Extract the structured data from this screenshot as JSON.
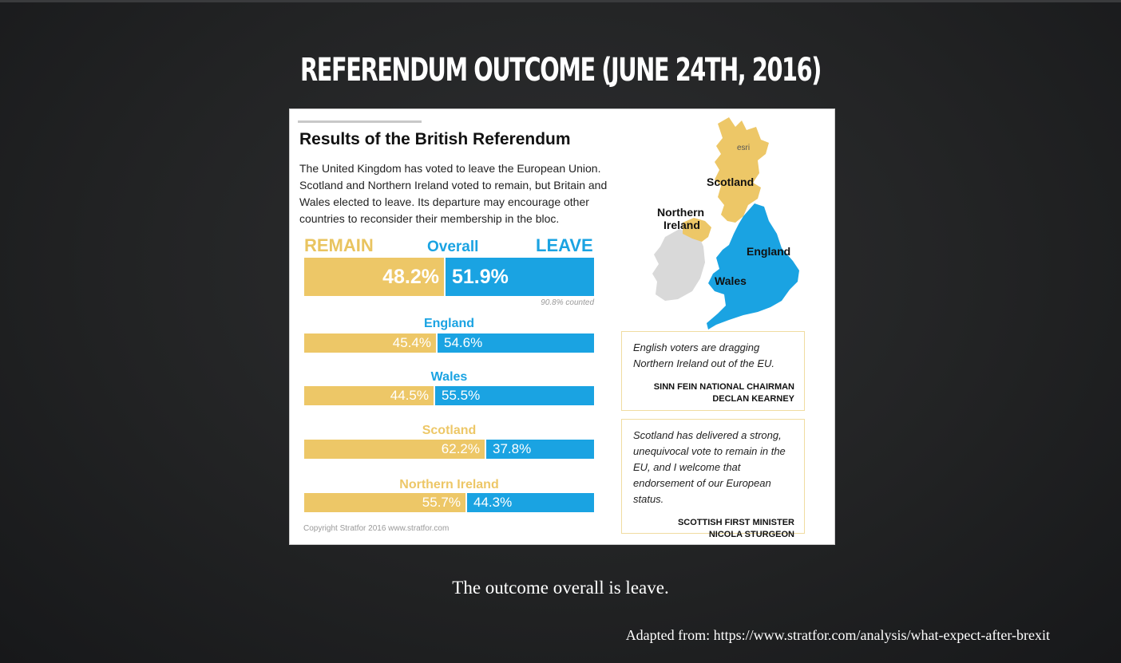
{
  "slide": {
    "title": "REFERENDUM OUTCOME (JUNE 24TH, 2016)",
    "caption": "The outcome overall is leave.",
    "source": "Adapted from: https://www.stratfor.com/analysis/what-expect-after-brexit"
  },
  "infographic": {
    "title": "Results of the British Referendum",
    "intro": "The United Kingdom has voted to leave the European Union. Scotland and Northern Ireland voted to remain, but Britain and Wales elected to leave. Its departure may encourage other countries to reconsider their membership in the bloc.",
    "remain_label": "REMAIN",
    "overall_label": "Overall",
    "leave_label": "LEAVE",
    "overall_remain": "48.2%",
    "overall_leave": "51.9%",
    "counted": "90.8% counted",
    "regions": [
      {
        "name": "England",
        "remain": "45.4%",
        "leave": "54.6%"
      },
      {
        "name": "Wales",
        "remain": "44.5%",
        "leave": "55.5%"
      },
      {
        "name": "Scotland",
        "remain": "62.2%",
        "leave": "37.8%"
      },
      {
        "name": "Northern Ireland",
        "remain": "55.7%",
        "leave": "44.3%"
      }
    ],
    "copyright": "Copyright Stratfor 2016   www.stratfor.com",
    "map": {
      "esri": "esri",
      "scotland": "Scotland",
      "northern_ireland_1": "Northern",
      "northern_ireland_2": "Ireland",
      "england": "England",
      "wales": "Wales"
    },
    "quotes": [
      {
        "text": "English voters are dragging Northern Ireland out of the EU.",
        "author1": "SINN FEIN NATIONAL CHAIRMAN",
        "author2": "DECLAN KEARNEY"
      },
      {
        "text": "Scotland has delivered a strong, unequivocal vote to remain in the EU, and I welcome that endorsement of our European status.",
        "author1": "SCOTTISH FIRST MINISTER",
        "author2": "NICOLA STURGEON"
      }
    ]
  },
  "colors": {
    "remain": "#edc767",
    "leave": "#1aa3e2",
    "background": "#222324"
  }
}
